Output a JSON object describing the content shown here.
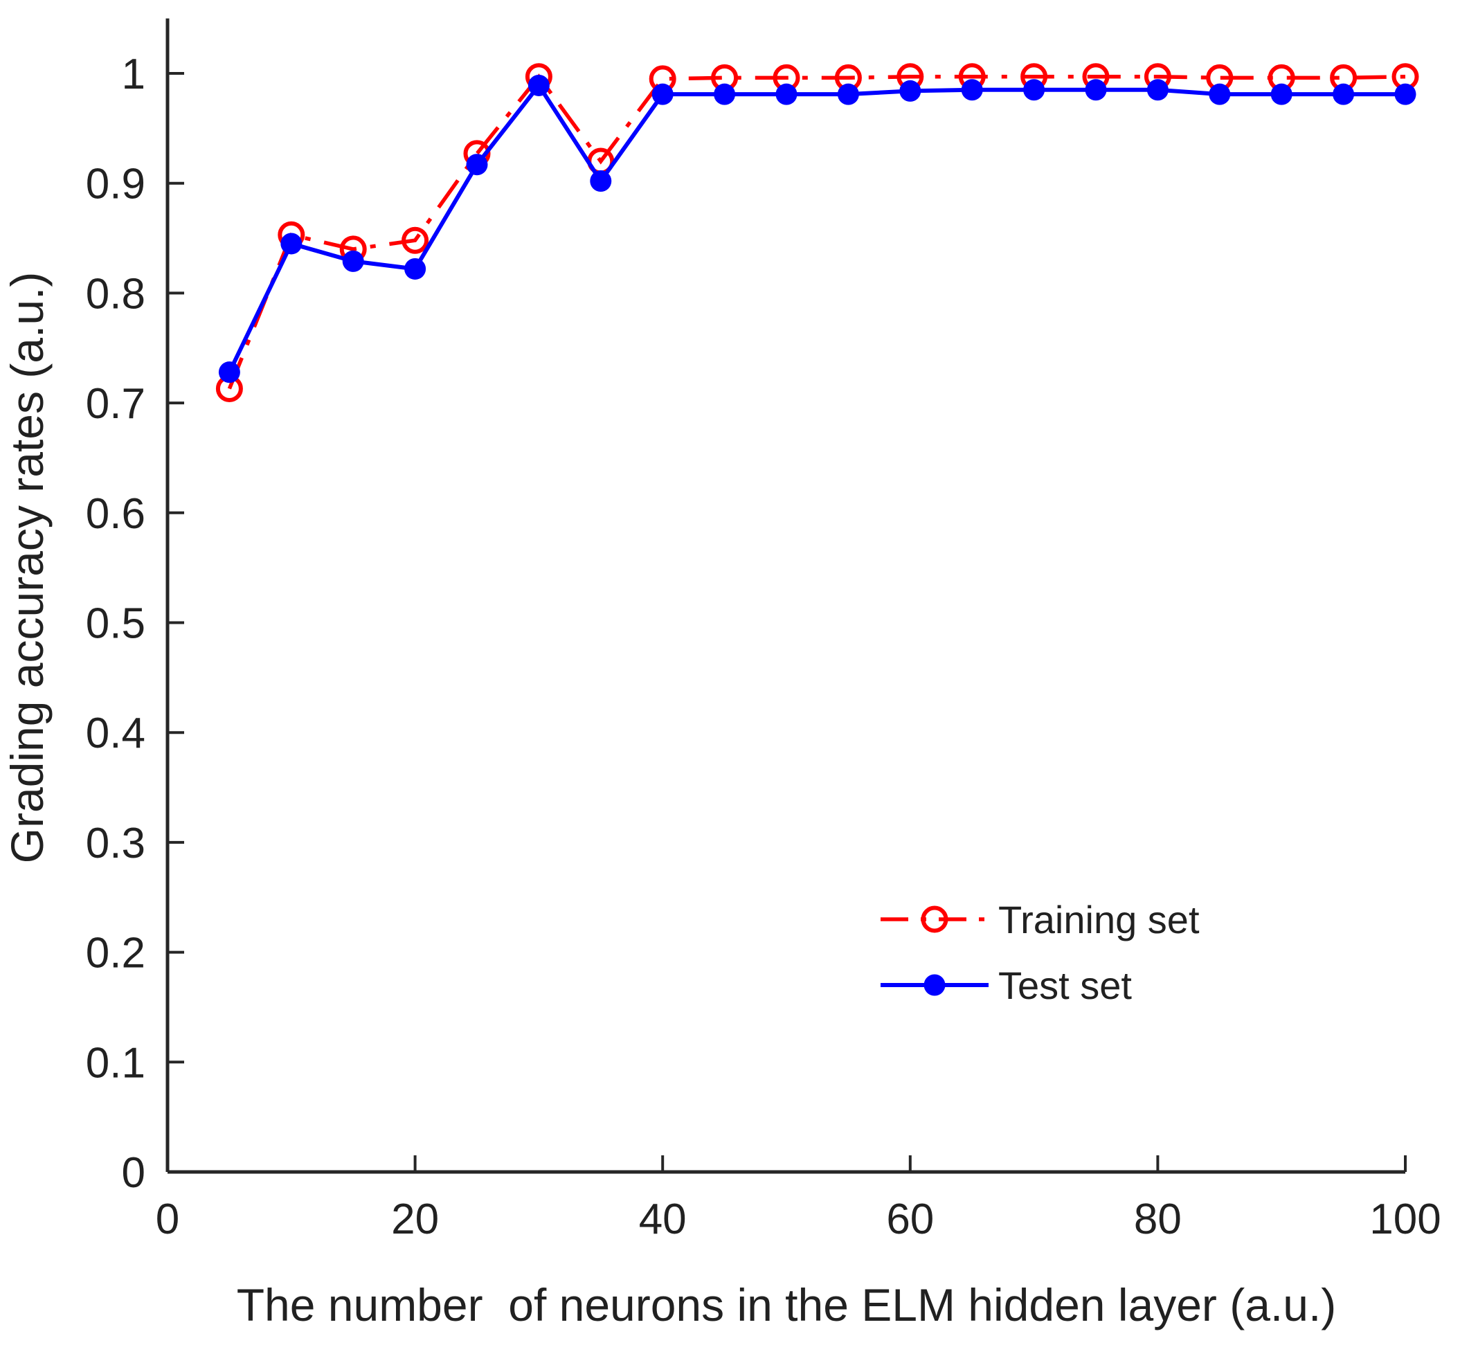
{
  "figure": {
    "background": "#ffffff",
    "axis_color": "#262626",
    "text_color": "#212121"
  },
  "chart_data": {
    "type": "line",
    "title": "",
    "xlabel": "The number  of neurons in the ELM hidden layer (a.u.)",
    "ylabel": "Grading accuracy rates (a.u.)",
    "xlim": [
      0,
      100
    ],
    "ylim": [
      0,
      1.05
    ],
    "grid": false,
    "legend_position": "lower-right",
    "xticks": [
      0,
      20,
      40,
      60,
      80,
      100
    ],
    "xtick_labels": [
      "0",
      "20",
      "40",
      "60",
      "80",
      "100"
    ],
    "yticks": [
      0,
      0.1,
      0.2,
      0.3,
      0.4,
      0.5,
      0.6,
      0.7,
      0.8,
      0.9,
      1.0
    ],
    "ytick_labels": [
      "0",
      "0.1",
      "0.2",
      "0.3",
      "0.4",
      "0.5",
      "0.6",
      "0.7",
      "0.8",
      "0.9",
      "1"
    ],
    "x": [
      5,
      10,
      15,
      20,
      25,
      30,
      35,
      40,
      45,
      50,
      55,
      60,
      65,
      70,
      75,
      80,
      85,
      90,
      95,
      100
    ],
    "series": [
      {
        "name": "Training set",
        "color": "#ff0000",
        "line_style": "dash-dot",
        "marker": "open-circle",
        "values": [
          0.713,
          0.853,
          0.84,
          0.848,
          0.927,
          0.997,
          0.92,
          0.995,
          0.996,
          0.996,
          0.996,
          0.997,
          0.997,
          0.997,
          0.997,
          0.997,
          0.996,
          0.996,
          0.996,
          0.997
        ]
      },
      {
        "name": "Test set",
        "color": "#0000ff",
        "line_style": "solid",
        "marker": "filled-circle",
        "values": [
          0.728,
          0.845,
          0.829,
          0.822,
          0.917,
          0.989,
          0.902,
          0.981,
          0.981,
          0.981,
          0.981,
          0.984,
          0.985,
          0.985,
          0.985,
          0.985,
          0.981,
          0.981,
          0.981,
          0.981
        ]
      }
    ]
  }
}
